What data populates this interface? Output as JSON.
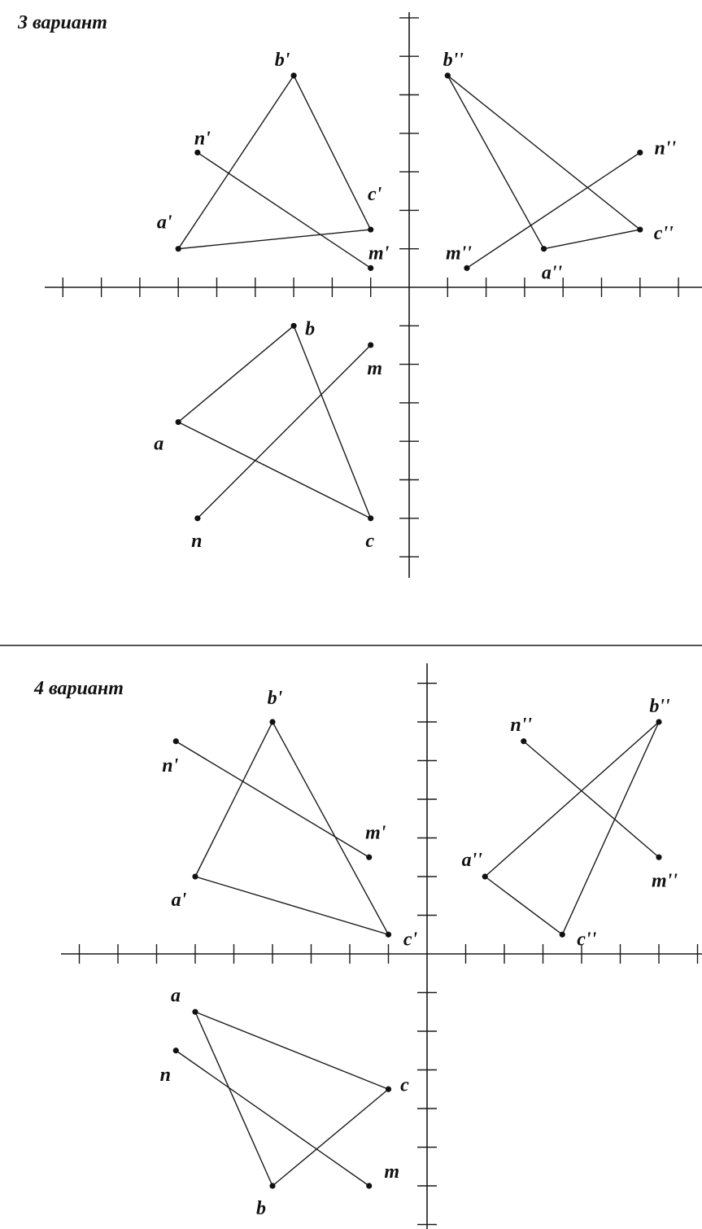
{
  "variants": [
    {
      "title": "3 вариант",
      "unit_note": "coordinates in axis tick units from the origin",
      "points": [
        {
          "id": "b1",
          "label": "b'",
          "x": -3,
          "y": 5.5
        },
        {
          "id": "n1",
          "label": "n'",
          "x": -5.5,
          "y": 3.5
        },
        {
          "id": "c1",
          "label": "c'",
          "x": -1,
          "y": 1.5
        },
        {
          "id": "a1",
          "label": "a'",
          "x": -6,
          "y": 1
        },
        {
          "id": "m1",
          "label": "m'",
          "x": -1,
          "y": 0.5
        },
        {
          "id": "b2",
          "label": "b''",
          "x": 1,
          "y": 5.5
        },
        {
          "id": "n2",
          "label": "n''",
          "x": 6,
          "y": 3.5
        },
        {
          "id": "c2",
          "label": "c''",
          "x": 6,
          "y": 1.5
        },
        {
          "id": "a2",
          "label": "a''",
          "x": 3.5,
          "y": 1
        },
        {
          "id": "m2",
          "label": "m''",
          "x": 1.5,
          "y": 0.5
        },
        {
          "id": "b",
          "label": "b",
          "x": -3,
          "y": -1
        },
        {
          "id": "m",
          "label": "m",
          "x": -1,
          "y": -1.5
        },
        {
          "id": "a",
          "label": "a",
          "x": -6,
          "y": -3.5
        },
        {
          "id": "n",
          "label": "n",
          "x": -5.5,
          "y": -6
        },
        {
          "id": "c",
          "label": "c",
          "x": -1,
          "y": -6
        }
      ],
      "segments": [
        [
          "a1",
          "b1"
        ],
        [
          "b1",
          "c1"
        ],
        [
          "c1",
          "a1"
        ],
        [
          "n1",
          "m1"
        ],
        [
          "a2",
          "b2"
        ],
        [
          "b2",
          "c2"
        ],
        [
          "c2",
          "a2"
        ],
        [
          "m2",
          "n2"
        ],
        [
          "a",
          "b"
        ],
        [
          "b",
          "c"
        ],
        [
          "c",
          "a"
        ],
        [
          "n",
          "m"
        ]
      ]
    },
    {
      "title": "4 вариант",
      "points": [
        {
          "id": "b1",
          "label": "b'",
          "x": -4,
          "y": 6
        },
        {
          "id": "n1",
          "label": "n'",
          "x": -6.5,
          "y": 5.5
        },
        {
          "id": "m1",
          "label": "m'",
          "x": -1.5,
          "y": 2.5
        },
        {
          "id": "a1",
          "label": "a'",
          "x": -6,
          "y": 2
        },
        {
          "id": "c1",
          "label": "c'",
          "x": -1,
          "y": 0.5
        },
        {
          "id": "b2",
          "label": "b''",
          "x": 6,
          "y": 6
        },
        {
          "id": "n2",
          "label": "n''",
          "x": 2.5,
          "y": 5.5
        },
        {
          "id": "m2",
          "label": "m''",
          "x": 6,
          "y": 2.5
        },
        {
          "id": "a2",
          "label": "a''",
          "x": 1.5,
          "y": 2
        },
        {
          "id": "c2",
          "label": "c''",
          "x": 3.5,
          "y": 0.5
        },
        {
          "id": "a",
          "label": "a",
          "x": -6,
          "y": -1.5
        },
        {
          "id": "n",
          "label": "n",
          "x": -6.5,
          "y": -2.5
        },
        {
          "id": "c",
          "label": "c",
          "x": -1,
          "y": -3.5
        },
        {
          "id": "b",
          "label": "b",
          "x": -4,
          "y": -6
        },
        {
          "id": "m",
          "label": "m",
          "x": -1.5,
          "y": -6
        }
      ],
      "segments": [
        [
          "a1",
          "b1"
        ],
        [
          "b1",
          "c1"
        ],
        [
          "c1",
          "a1"
        ],
        [
          "n1",
          "m1"
        ],
        [
          "a2",
          "b2"
        ],
        [
          "b2",
          "c2"
        ],
        [
          "c2",
          "a2"
        ],
        [
          "n2",
          "m2"
        ],
        [
          "a",
          "b"
        ],
        [
          "b",
          "c"
        ],
        [
          "c",
          "a"
        ],
        [
          "n",
          "m"
        ]
      ]
    }
  ]
}
